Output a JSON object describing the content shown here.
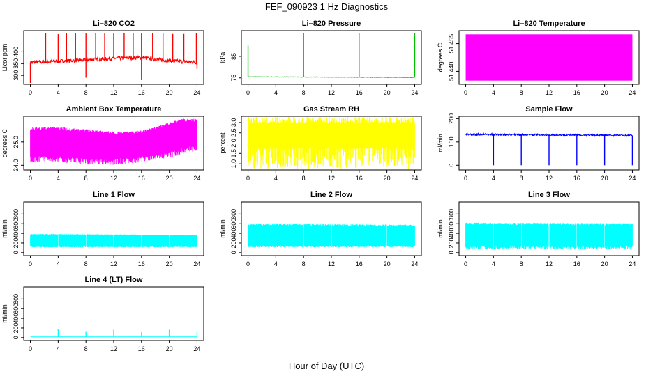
{
  "figure": {
    "title": "FEF_090923  1 Hz Diagnostics",
    "xlabel": "Hour of Day (UTC)"
  },
  "chart_data": [
    {
      "id": "co2",
      "type": "line",
      "title": "Li–820 CO2",
      "ylabel": "Licor ppm",
      "color": "#ff0000",
      "xlim": [
        0,
        24
      ],
      "xticks": [
        0,
        4,
        8,
        12,
        16,
        20,
        24
      ],
      "ylim": [
        262,
        490
      ],
      "yticks": [
        300,
        350,
        400
      ],
      "baseline": [
        [
          0,
          355
        ],
        [
          4,
          360
        ],
        [
          8,
          365
        ],
        [
          12,
          372
        ],
        [
          16,
          375
        ],
        [
          20,
          362
        ],
        [
          24,
          355
        ]
      ],
      "noise": 8,
      "spikes": [
        [
          2.2,
          480
        ],
        [
          4,
          475
        ],
        [
          5.2,
          478
        ],
        [
          6.5,
          478
        ],
        [
          8,
          478
        ],
        [
          9.4,
          480
        ],
        [
          10.7,
          478
        ],
        [
          12,
          478
        ],
        [
          13.5,
          480
        ],
        [
          14.8,
          478
        ],
        [
          16,
          478
        ],
        [
          17.6,
          480
        ],
        [
          19.1,
          478
        ],
        [
          20.5,
          476
        ],
        [
          22.1,
          476
        ],
        [
          23.9,
          480
        ]
      ],
      "dips": [
        [
          0,
          268
        ],
        [
          8,
          290
        ],
        [
          16,
          280
        ],
        [
          24,
          328
        ]
      ]
    },
    {
      "id": "pressure",
      "type": "line",
      "title": "Li–820 Pressure",
      "ylabel": "kPa",
      "color": "#00c000",
      "xlim": [
        0,
        24
      ],
      "xticks": [
        0,
        4,
        8,
        12,
        16,
        20,
        24
      ],
      "ylim": [
        72,
        97
      ],
      "yticks": [
        75,
        85
      ],
      "baseline": [
        [
          0,
          75.5
        ],
        [
          24,
          75.2
        ]
      ],
      "noise": 0.1,
      "spikes": [
        [
          0,
          90
        ],
        [
          8,
          96
        ],
        [
          16,
          96
        ],
        [
          24,
          96
        ]
      ],
      "dips": []
    },
    {
      "id": "licor-temp",
      "type": "area",
      "title": "Li–820 Temperature",
      "ylabel": "degrees C",
      "color": "#ff00ff",
      "xlim": [
        0,
        24
      ],
      "xticks": [
        0,
        4,
        8,
        12,
        16,
        20,
        24
      ],
      "ylim": [
        51.433,
        51.462
      ],
      "yticks": [
        51.44,
        51.455
      ],
      "yticklabels": [
        "51.440",
        "51.455"
      ],
      "band": [
        51.435,
        51.46
      ]
    },
    {
      "id": "box-temp",
      "type": "band",
      "title": "Ambient Box Temperature",
      "ylabel": "degrees C",
      "color": "#ff00ff",
      "xlim": [
        0,
        24
      ],
      "xticks": [
        0,
        4,
        8,
        12,
        16,
        20,
        24
      ],
      "ylim": [
        23.8,
        26.1
      ],
      "yticks": [
        24.0,
        25.0
      ],
      "yticklabels": [
        "24.0",
        "25.0"
      ],
      "upper": [
        [
          0,
          25.6
        ],
        [
          4,
          25.6
        ],
        [
          8,
          25.5
        ],
        [
          12,
          25.4
        ],
        [
          16,
          25.45
        ],
        [
          18,
          25.6
        ],
        [
          20,
          25.8
        ],
        [
          22,
          25.95
        ],
        [
          24,
          25.95
        ]
      ],
      "lower": [
        [
          0,
          24.3
        ],
        [
          4,
          24.3
        ],
        [
          8,
          24.2
        ],
        [
          12,
          24.2
        ],
        [
          16,
          24.3
        ],
        [
          20,
          24.5
        ],
        [
          24,
          24.8
        ]
      ],
      "outer": 0.18
    },
    {
      "id": "rh",
      "type": "band",
      "title": "Gas Stream RH",
      "ylabel": "percent",
      "color": "#ffff00",
      "xlim": [
        0,
        24
      ],
      "xticks": [
        0,
        4,
        8,
        12,
        16,
        20,
        24
      ],
      "ylim": [
        0.7,
        3.3
      ],
      "yticks": [
        1.0,
        1.5,
        2.0,
        2.5,
        3.0
      ],
      "yticklabels": [
        "1.0",
        "1.5",
        "2.0",
        "2.5",
        "3.0"
      ],
      "upper": [
        [
          0,
          3.05
        ],
        [
          24,
          3.05
        ]
      ],
      "lower": [
        [
          0,
          1.7
        ],
        [
          24,
          1.7
        ]
      ],
      "outer": 0.95
    },
    {
      "id": "sample-flow",
      "type": "line",
      "title": "Sample Flow",
      "ylabel": "ml/min",
      "color": "#0000ff",
      "xlim": [
        0,
        24
      ],
      "xticks": [
        0,
        4,
        8,
        12,
        16,
        20,
        24
      ],
      "ylim": [
        -20,
        210
      ],
      "yticks": [
        0,
        100,
        200
      ],
      "baseline": [
        [
          0,
          133
        ],
        [
          24,
          128
        ]
      ],
      "noise": 4,
      "spikes": [],
      "dips": [
        [
          4,
          0
        ],
        [
          8,
          0
        ],
        [
          12,
          0
        ],
        [
          16,
          0
        ],
        [
          20,
          0
        ],
        [
          24,
          0
        ]
      ]
    },
    {
      "id": "line1",
      "type": "band",
      "title": "Line 1 Flow",
      "ylabel": "ml/min",
      "color": "#00ffff",
      "xlim": [
        0,
        24
      ],
      "xticks": [
        0,
        4,
        8,
        12,
        16,
        20,
        24
      ],
      "ylim": [
        -60,
        1050
      ],
      "yticks": [
        0,
        200,
        400,
        600,
        800
      ],
      "upper": [
        [
          0,
          390
        ],
        [
          24,
          370
        ]
      ],
      "lower": [
        [
          0,
          110
        ],
        [
          24,
          110
        ]
      ],
      "outer": 0,
      "gaps": [
        4,
        8,
        12,
        16,
        20,
        24
      ]
    },
    {
      "id": "line2",
      "type": "band",
      "title": "Line 2 Flow",
      "ylabel": "ml/min",
      "color": "#00ffff",
      "xlim": [
        0,
        24
      ],
      "xticks": [
        0,
        4,
        8,
        12,
        16,
        20,
        24
      ],
      "ylim": [
        -60,
        1050
      ],
      "yticks": [
        0,
        200,
        400,
        600,
        800
      ],
      "upper": [
        [
          0,
          600
        ],
        [
          24,
          580
        ]
      ],
      "lower": [
        [
          0,
          110
        ],
        [
          24,
          110
        ]
      ],
      "outer": 0,
      "gaps": [
        4,
        8,
        12,
        16,
        20,
        24
      ]
    },
    {
      "id": "line3",
      "type": "band",
      "title": "Line 3 Flow",
      "ylabel": "ml/min",
      "color": "#00ffff",
      "xlim": [
        0,
        24
      ],
      "xticks": [
        0,
        4,
        8,
        12,
        16,
        20,
        24
      ],
      "ylim": [
        -60,
        1050
      ],
      "yticks": [
        0,
        200,
        400,
        600,
        800
      ],
      "upper": [
        [
          0,
          610
        ],
        [
          24,
          600
        ]
      ],
      "lower": [
        [
          0,
          110
        ],
        [
          24,
          110
        ]
      ],
      "outer": 40,
      "gaps": [
        4,
        8,
        12,
        16,
        20,
        24
      ]
    },
    {
      "id": "line4",
      "type": "line",
      "title": "Line 4 (LT) Flow",
      "ylabel": "ml/min",
      "color": "#00ffff",
      "xlim": [
        0,
        24
      ],
      "xticks": [
        0,
        4,
        8,
        12,
        16,
        20,
        24
      ],
      "ylim": [
        -60,
        1050
      ],
      "yticks": [
        0,
        200,
        400,
        600,
        800
      ],
      "baseline": [
        [
          0,
          15
        ],
        [
          24,
          15
        ]
      ],
      "noise": 1,
      "spikes": [
        [
          4,
          175
        ],
        [
          8,
          120
        ],
        [
          12,
          165
        ],
        [
          16,
          110
        ],
        [
          20,
          165
        ],
        [
          24,
          120
        ]
      ],
      "dips": []
    }
  ]
}
